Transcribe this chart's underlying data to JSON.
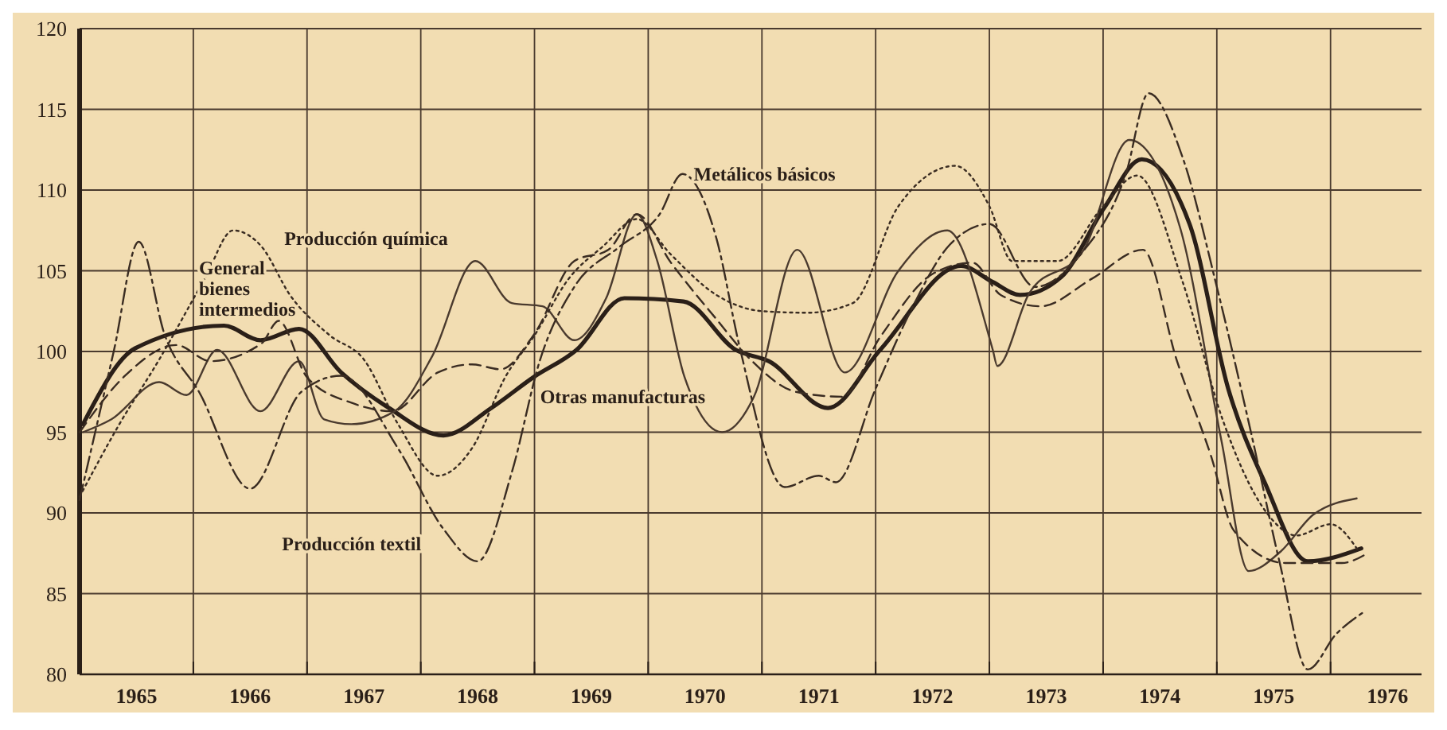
{
  "chart_data": {
    "type": "line",
    "xlim": [
      1965,
      1976.8
    ],
    "ylim": [
      80,
      120
    ],
    "xticks": [
      {
        "value": 1965,
        "label": null
      },
      {
        "value": 1965.5,
        "label": "1965"
      },
      {
        "value": 1966,
        "label": null
      },
      {
        "value": 1966.5,
        "label": "1966"
      },
      {
        "value": 1967,
        "label": null
      },
      {
        "value": 1967.5,
        "label": "1967"
      },
      {
        "value": 1968,
        "label": null
      },
      {
        "value": 1968.5,
        "label": "1968"
      },
      {
        "value": 1969,
        "label": null
      },
      {
        "value": 1969.5,
        "label": "1969"
      },
      {
        "value": 1970,
        "label": null
      },
      {
        "value": 1970.5,
        "label": "1970"
      },
      {
        "value": 1971,
        "label": null
      },
      {
        "value": 1971.5,
        "label": "1971"
      },
      {
        "value": 1972,
        "label": null
      },
      {
        "value": 1972.5,
        "label": "1972"
      },
      {
        "value": 1973,
        "label": null
      },
      {
        "value": 1973.5,
        "label": "1973"
      },
      {
        "value": 1974,
        "label": null
      },
      {
        "value": 1974.5,
        "label": "1974"
      },
      {
        "value": 1975,
        "label": null
      },
      {
        "value": 1975.5,
        "label": "1975"
      },
      {
        "value": 1976,
        "label": null
      },
      {
        "value": 1976.5,
        "label": "1976"
      }
    ],
    "yticks": [
      80,
      85,
      90,
      95,
      100,
      105,
      110,
      115,
      120
    ],
    "grid": true,
    "series": [
      {
        "color": "#2a1f18",
        "line_style": "solid",
        "x": [
          1965.03,
          1965.49,
          1966.27,
          1966.59,
          1966.93,
          1967.3,
          1967.72,
          1968.2,
          1968.62,
          1968.99,
          1969.37,
          1969.79,
          1970.31,
          1970.77,
          1971.06,
          1971.58,
          1972.04,
          1972.75,
          1973.03,
          1973.27,
          1973.63,
          1974.01,
          1974.34,
          1974.76,
          1975.1,
          1975.42,
          1975.8,
          1976.27
        ],
        "values": [
          95.5,
          100.2,
          101.6,
          100.7,
          101.4,
          98.7,
          96.5,
          94.8,
          96.5,
          98.4,
          100.1,
          103.3,
          103.1,
          100.1,
          99.4,
          96.5,
          100.1,
          105.3,
          104.3,
          103.5,
          104.6,
          108.9,
          111.9,
          107.9,
          97.7,
          91.9,
          87,
          87.8
        ]
      },
      {
        "color": "#4a3a2e",
        "line_style": "solid",
        "x": [
          1965.03,
          1965.28,
          1965.7,
          1965.94,
          1966.21,
          1966.59,
          1966.93,
          1967.15,
          1967.39,
          1967.77,
          1968.1,
          1968.48,
          1968.8,
          1969.07,
          1969.35,
          1969.63,
          1969.9,
          1970.08,
          1970.32,
          1970.65,
          1970.93,
          1971.31,
          1971.73,
          1972.2,
          1972.63,
          1973.03,
          1973.07,
          1973.35,
          1973.83,
          1974.23,
          1974.68,
          1975.04,
          1975.28,
          1975.56,
          1975.85,
          1976.23
        ],
        "values": [
          95,
          95.8,
          98.1,
          97.3,
          100.1,
          96.3,
          99.4,
          95.8,
          95.5,
          96.3,
          99.7,
          105.6,
          103,
          102.8,
          100.7,
          103.3,
          108.5,
          105.6,
          98.4,
          95,
          97.2,
          106.3,
          98.7,
          105,
          107.5,
          100.1,
          99.1,
          103.6,
          106.3,
          113.1,
          107.6,
          94.5,
          86.4,
          87.6,
          89.9,
          90.9
        ]
      },
      {
        "color": "#3a2c22",
        "line_style": "dotted",
        "x": [
          1965,
          1965.35,
          1965.7,
          1966.1,
          1966.35,
          1966.6,
          1966.85,
          1967.2,
          1967.5,
          1967.8,
          1968.15,
          1968.45,
          1968.75,
          1969,
          1969.3,
          1969.6,
          1969.9,
          1970.2,
          1970.6,
          1971,
          1971.4,
          1971.8,
          1972.2,
          1972.7,
          1973,
          1973.2,
          1973.6,
          1974,
          1974.3,
          1974.7,
          1975.05,
          1975.45,
          1975.7,
          1976,
          1976.25
        ],
        "values": [
          91,
          95.5,
          99.5,
          104.5,
          107.5,
          106.5,
          103.5,
          101,
          99.5,
          95.5,
          92.3,
          94,
          98.5,
          101,
          104.5,
          106.5,
          108.2,
          106,
          103.5,
          102.5,
          102.4,
          103,
          109,
          111.5,
          109,
          105.6,
          105.6,
          109,
          110.9,
          104.3,
          95.8,
          89.9,
          88.6,
          89.3,
          87.6
        ]
      },
      {
        "color": "#3a2c22",
        "line_style": "dashed",
        "x": [
          1965,
          1965.4,
          1965.85,
          1966.15,
          1966.6,
          1966.75,
          1967,
          1967.4,
          1967.75,
          1968.15,
          1968.45,
          1968.7,
          1969,
          1969.35,
          1969.65,
          1969.9,
          1970.2,
          1970.6,
          1970.9,
          1971.3,
          1971.7,
          1972.05,
          1972.5,
          1972.85,
          1973.1,
          1973.45,
          1973.9,
          1974.35,
          1974.65,
          1974.95,
          1975.15,
          1975.6,
          1976.1,
          1976.3
        ],
        "values": [
          95,
          98.5,
          100.4,
          99.4,
          100.5,
          101.9,
          98.4,
          96.8,
          96.3,
          98.7,
          99.2,
          98.9,
          101.1,
          105.6,
          106.3,
          108.5,
          105.5,
          102,
          99.5,
          97.5,
          97.2,
          101,
          104.8,
          105.5,
          103.5,
          102.8,
          104.5,
          106.3,
          99.4,
          93.5,
          88.9,
          86.9,
          86.9,
          87.4
        ]
      },
      {
        "color": "#3a2c22",
        "line_style": "dashdot",
        "x": [
          1965,
          1965.3,
          1965.52,
          1965.75,
          1966.05,
          1966.5,
          1966.95,
          1967.3,
          1967.8,
          1968.2,
          1968.5,
          1968.8,
          1969.05,
          1969.35,
          1969.75,
          1970.1,
          1970.3,
          1970.6,
          1970.8,
          1971.2,
          1971.5,
          1971.65,
          1972,
          1972.3,
          1972.65,
          1973,
          1973.4,
          1973.8,
          1974.2,
          1974.4,
          1974.7,
          1975,
          1975.3,
          1975.55,
          1975.8,
          1976.05,
          1976.3
        ],
        "values": [
          90.8,
          100,
          106.8,
          101,
          97.5,
          91.5,
          97.5,
          98.5,
          94,
          89,
          87,
          92.5,
          99.5,
          104,
          106.5,
          108.5,
          111,
          107,
          100.4,
          91.6,
          92.3,
          91.9,
          97.7,
          102.4,
          106.6,
          107.9,
          104,
          106,
          111,
          116,
          112,
          104,
          95,
          87,
          80.3,
          82.5,
          83.9
        ]
      }
    ],
    "annotations": [
      "General bienes intermedios",
      "Producción química",
      "Metálicos básicos",
      "Otras manufacturas",
      "Producción textil"
    ]
  }
}
